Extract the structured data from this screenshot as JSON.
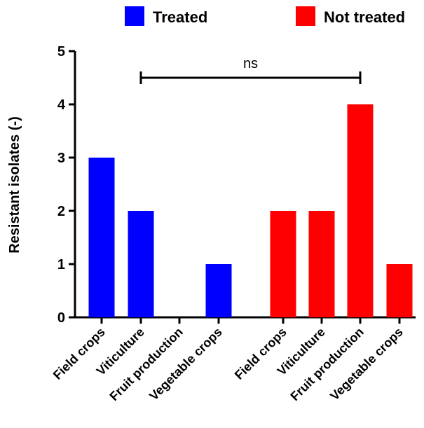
{
  "chart_data": {
    "type": "bar",
    "ylabel": "Resistant isolates (-)",
    "ylim": [
      0,
      5
    ],
    "yticks": [
      "0",
      "1",
      "2",
      "3",
      "4",
      "5"
    ],
    "grid": false,
    "legend_position": "top",
    "groups": [
      {
        "name": "Treated",
        "color": "#0000ff",
        "categories": [
          "Field crops",
          "Viticulture",
          "Fruit production",
          "Vegetable crops"
        ],
        "values": [
          3,
          2,
          0,
          1
        ]
      },
      {
        "name": "Not treated",
        "color": "#ff0000",
        "categories": [
          "Field crops",
          "Viticulture",
          "Fruit production",
          "Vegetable crops"
        ],
        "values": [
          2,
          2,
          4,
          1
        ]
      }
    ],
    "annotation": {
      "text": "ns",
      "from_bar": 1,
      "to_bar": 6,
      "level": 4.5
    }
  }
}
